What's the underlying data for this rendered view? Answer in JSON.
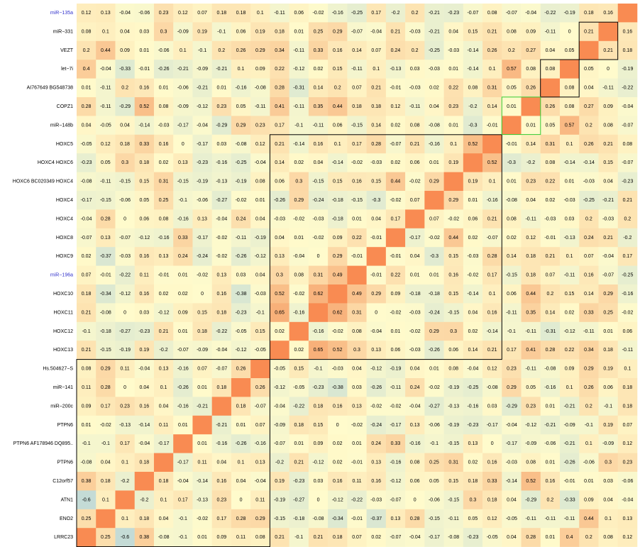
{
  "chart_data": {
    "type": "heatmap",
    "rows": [
      "miR−135a",
      "miR−331",
      "VEZT",
      "let−7i",
      "AI767649 BG548738",
      "COPZ1",
      "miR−148b",
      "HOXC5",
      "HOXC4 HOXC6",
      "HOXC6 BC020349 HOXC4",
      "HOXC4",
      "HOXC4",
      "HOXC8",
      "HOXC9",
      "miR−196a",
      "HOXC10",
      "HOXC11",
      "HOXC12",
      "HOXC13",
      "Hs.504627−S",
      "miR−141",
      "miR−200c",
      "PTPN6",
      "PTPN6 AF178946 DQ895..",
      "PTPN6",
      "C12orf57",
      "ATN1",
      "ENO2",
      "LRRC23"
    ],
    "row_label_colors": [
      "#3333cc",
      "#000000",
      "#000000",
      "#000000",
      "#000000",
      "#000000",
      "#000000",
      "#000000",
      "#000000",
      "#000000",
      "#000000",
      "#000000",
      "#000000",
      "#000000",
      "#3333cc",
      "#000000",
      "#000000",
      "#000000",
      "#000000",
      "#000000",
      "#000000",
      "#000000",
      "#000000",
      "#000000",
      "#000000",
      "#000000",
      "#000000",
      "#000000",
      "#000000"
    ],
    "zlim": [
      -1,
      1
    ],
    "colorscale": {
      "low": "#9cc6dc",
      "mid": "#fffbcc",
      "high": "#f4874c"
    },
    "diagonal_color": "#f98b52",
    "values": [
      [
        0.12,
        0.13,
        -0.04,
        -0.06,
        0.23,
        0.12,
        0.07,
        0.18,
        0.18,
        0.1,
        -0.11,
        0.06,
        -0.02,
        -0.16,
        -0.25,
        0.17,
        -0.2,
        0.2,
        -0.21,
        -0.23,
        -0.07,
        0.08,
        -0.07,
        -0.04,
        -0.22,
        -0.19,
        0.18,
        0.16,
        null
      ],
      [
        0.08,
        0.1,
        0.04,
        0.03,
        0.3,
        -0.09,
        0.19,
        -0.1,
        0.06,
        0.19,
        0.18,
        0.01,
        0.25,
        0.29,
        -0.07,
        -0.04,
        0.21,
        -0.03,
        -0.21,
        0.04,
        0.15,
        0.21,
        0.08,
        0.09,
        -0.11,
        0,
        0.21,
        null,
        0.16
      ],
      [
        0.2,
        0.44,
        0.09,
        0.01,
        -0.06,
        0.1,
        -0.1,
        0.2,
        0.26,
        0.29,
        0.34,
        -0.11,
        0.33,
        0.16,
        0.14,
        0.07,
        0.24,
        0.2,
        -0.25,
        -0.03,
        -0.14,
        0.26,
        0.2,
        0.27,
        0.04,
        0.05,
        null,
        0.21,
        0.18
      ],
      [
        0.4,
        -0.04,
        -0.33,
        -0.01,
        -0.26,
        -0.21,
        -0.09,
        -0.21,
        0.1,
        0.09,
        0.22,
        -0.12,
        0.02,
        0.15,
        -0.11,
        0.1,
        -0.13,
        0.03,
        -0.03,
        0.01,
        -0.14,
        0.1,
        0.57,
        0.08,
        0.08,
        null,
        0.05,
        0,
        -0.19
      ],
      [
        0.01,
        -0.11,
        0.2,
        0.16,
        0.01,
        -0.06,
        -0.21,
        0.01,
        -0.16,
        -0.08,
        0.28,
        -0.31,
        0.14,
        0.2,
        0.07,
        0.21,
        -0.01,
        -0.03,
        0.02,
        0.22,
        0.08,
        0.31,
        0.05,
        0.26,
        null,
        0.08,
        0.04,
        -0.11,
        -0.22
      ],
      [
        0.28,
        -0.11,
        -0.29,
        0.52,
        0.08,
        -0.09,
        -0.12,
        0.23,
        0.05,
        -0.11,
        0.41,
        -0.11,
        0.35,
        0.44,
        0.18,
        0.18,
        0.12,
        -0.11,
        0.04,
        0.23,
        -0.2,
        0.14,
        0.01,
        null,
        0.26,
        0.08,
        0.27,
        0.09,
        -0.04
      ],
      [
        0.04,
        -0.05,
        0.04,
        -0.14,
        -0.03,
        -0.17,
        -0.04,
        -0.29,
        0.29,
        0.23,
        0.17,
        -0.1,
        -0.11,
        0.06,
        -0.15,
        0.14,
        0.02,
        0.08,
        -0.08,
        0.01,
        -0.3,
        -0.01,
        null,
        0.01,
        0.05,
        0.57,
        0.2,
        0.08,
        -0.07
      ],
      [
        -0.05,
        0.12,
        0.18,
        0.33,
        0.16,
        0,
        -0.17,
        0.03,
        -0.08,
        0.12,
        0.21,
        -0.14,
        0.16,
        0.1,
        0.17,
        0.28,
        -0.07,
        0.21,
        -0.16,
        0.1,
        0.52,
        null,
        -0.01,
        0.14,
        0.31,
        0.1,
        0.26,
        0.21,
        0.08
      ],
      [
        -0.23,
        0.05,
        0.3,
        0.18,
        0.02,
        0.13,
        -0.23,
        -0.16,
        -0.25,
        -0.04,
        0.14,
        0.02,
        0.04,
        -0.14,
        -0.02,
        -0.03,
        0.02,
        0.06,
        0.01,
        0.19,
        null,
        0.52,
        -0.3,
        -0.2,
        0.08,
        -0.14,
        -0.14,
        0.15,
        -0.07
      ],
      [
        -0.08,
        -0.11,
        -0.15,
        0.15,
        0.31,
        -0.15,
        -0.19,
        -0.13,
        -0.19,
        0.08,
        0.06,
        0.3,
        -0.15,
        0.15,
        0.16,
        0.15,
        0.44,
        -0.02,
        0.29,
        null,
        0.19,
        0.1,
        0.01,
        0.23,
        0.22,
        0.01,
        -0.03,
        0.04,
        -0.23
      ],
      [
        -0.17,
        -0.15,
        -0.06,
        0.05,
        0.25,
        -0.1,
        -0.06,
        -0.27,
        -0.02,
        0.01,
        -0.26,
        0.29,
        -0.24,
        -0.18,
        -0.15,
        -0.3,
        -0.02,
        0.07,
        null,
        0.29,
        0.01,
        -0.16,
        -0.08,
        0.04,
        0.02,
        -0.03,
        -0.25,
        -0.21,
        0.21
      ],
      [
        -0.04,
        0.28,
        0,
        0.06,
        0.08,
        -0.16,
        0.13,
        -0.04,
        0.24,
        0.04,
        -0.03,
        -0.02,
        -0.03,
        -0.18,
        0.01,
        0.04,
        0.17,
        null,
        0.07,
        -0.02,
        0.06,
        0.21,
        0.08,
        -0.11,
        -0.03,
        0.03,
        0.2,
        -0.03,
        0.2
      ],
      [
        -0.07,
        0.13,
        -0.07,
        -0.12,
        -0.16,
        0.33,
        -0.17,
        -0.02,
        -0.11,
        -0.19,
        0.04,
        0.01,
        -0.02,
        0.09,
        0.22,
        -0.01,
        null,
        -0.17,
        -0.02,
        0.44,
        0.02,
        -0.07,
        0.02,
        0.12,
        -0.01,
        -0.13,
        0.24,
        0.21,
        -0.2
      ],
      [
        0.02,
        -0.37,
        -0.03,
        0.16,
        0.13,
        0.24,
        -0.24,
        -0.02,
        -0.26,
        -0.12,
        0.13,
        -0.04,
        0,
        0.29,
        -0.01,
        null,
        -0.01,
        0.04,
        -0.3,
        0.15,
        -0.03,
        0.28,
        0.14,
        0.18,
        0.21,
        0.1,
        0.07,
        -0.04,
        0.17
      ],
      [
        0.07,
        -0.01,
        -0.22,
        0.11,
        -0.01,
        0.01,
        -0.02,
        0.13,
        0.03,
        0.04,
        0.3,
        0.08,
        0.31,
        0.49,
        null,
        -0.01,
        0.22,
        0.01,
        0.01,
        0.16,
        -0.02,
        0.17,
        -0.15,
        0.18,
        0.07,
        -0.11,
        0.16,
        -0.07,
        -0.25
      ],
      [
        0.18,
        -0.34,
        -0.12,
        0.16,
        0.02,
        0.02,
        0,
        0.16,
        -0.38,
        -0.03,
        0.52,
        -0.02,
        0.62,
        null,
        0.49,
        0.29,
        0.09,
        -0.18,
        -0.18,
        0.15,
        -0.14,
        0.1,
        0.06,
        0.44,
        0.2,
        0.15,
        0.14,
        0.29,
        -0.16
      ],
      [
        0.21,
        -0.08,
        0,
        0.03,
        -0.12,
        0.09,
        0.15,
        0.18,
        -0.23,
        -0.1,
        0.65,
        -0.16,
        null,
        0.62,
        0.31,
        0,
        -0.02,
        -0.03,
        -0.24,
        -0.15,
        0.04,
        0.16,
        -0.11,
        0.35,
        0.14,
        0.02,
        0.33,
        0.25,
        -0.02
      ],
      [
        -0.1,
        -0.18,
        -0.27,
        -0.23,
        0.21,
        0.01,
        0.18,
        -0.22,
        -0.05,
        0.15,
        0.02,
        null,
        -0.16,
        -0.02,
        0.08,
        -0.04,
        0.01,
        -0.02,
        0.29,
        0.3,
        0.02,
        -0.14,
        -0.1,
        -0.11,
        -0.31,
        -0.12,
        -0.11,
        0.01,
        0.06
      ],
      [
        0.21,
        -0.15,
        -0.19,
        0.19,
        -0.2,
        -0.07,
        -0.09,
        -0.04,
        -0.12,
        -0.05,
        null,
        0.02,
        0.65,
        0.52,
        0.3,
        0.13,
        0.06,
        -0.03,
        -0.26,
        0.06,
        0.14,
        0.21,
        0.17,
        0.41,
        0.28,
        0.22,
        0.34,
        0.18,
        -0.11
      ],
      [
        0.08,
        0.29,
        0.11,
        -0.04,
        0.13,
        -0.16,
        0.07,
        -0.07,
        0.26,
        null,
        -0.05,
        0.15,
        -0.1,
        -0.03,
        0.04,
        -0.12,
        -0.19,
        0.04,
        0.01,
        0.08,
        -0.04,
        0.12,
        0.23,
        -0.11,
        -0.08,
        0.09,
        0.29,
        0.19,
        0.1
      ],
      [
        0.11,
        0.28,
        0,
        0.04,
        0.1,
        -0.26,
        0.01,
        0.18,
        null,
        0.26,
        -0.12,
        -0.05,
        -0.23,
        -0.38,
        0.03,
        -0.26,
        -0.11,
        0.24,
        -0.02,
        -0.19,
        -0.25,
        -0.08,
        0.29,
        0.05,
        -0.16,
        0.1,
        0.26,
        0.06,
        0.18
      ],
      [
        0.09,
        0.17,
        0.23,
        0.16,
        0.04,
        -0.16,
        -0.21,
        null,
        0.18,
        -0.07,
        -0.04,
        -0.22,
        0.18,
        0.16,
        0.13,
        -0.02,
        -0.02,
        -0.04,
        -0.27,
        -0.13,
        -0.16,
        0.03,
        -0.29,
        0.23,
        0.01,
        -0.21,
        0.2,
        -0.1,
        0.18
      ],
      [
        0.01,
        -0.02,
        -0.13,
        -0.14,
        0.11,
        0.01,
        null,
        -0.21,
        0.01,
        0.07,
        -0.09,
        0.18,
        0.15,
        0,
        -0.02,
        -0.24,
        -0.17,
        0.13,
        -0.06,
        -0.19,
        -0.23,
        -0.17,
        -0.04,
        -0.12,
        -0.21,
        -0.09,
        -0.1,
        0.19,
        0.07
      ],
      [
        -0.1,
        -0.1,
        0.17,
        -0.04,
        -0.17,
        null,
        0.01,
        -0.16,
        -0.26,
        -0.16,
        -0.07,
        0.01,
        0.09,
        0.02,
        0.01,
        0.24,
        0.33,
        -0.16,
        -0.1,
        -0.15,
        0.13,
        0,
        -0.17,
        -0.09,
        -0.06,
        -0.21,
        0.1,
        -0.09,
        0.12
      ],
      [
        -0.08,
        0.04,
        0.1,
        0.18,
        null,
        -0.17,
        0.11,
        0.04,
        0.1,
        0.13,
        -0.2,
        0.21,
        -0.12,
        0.02,
        -0.01,
        0.13,
        -0.16,
        0.08,
        0.25,
        0.31,
        0.02,
        0.16,
        -0.03,
        0.08,
        0.01,
        -0.26,
        -0.06,
        0.3,
        0.23
      ],
      [
        0.38,
        0.18,
        -0.2,
        null,
        0.18,
        -0.04,
        -0.14,
        0.16,
        0.04,
        -0.04,
        0.19,
        -0.23,
        0.03,
        0.16,
        0.11,
        0.16,
        -0.12,
        0.06,
        0.05,
        0.15,
        0.18,
        0.33,
        -0.14,
        0.52,
        0.16,
        -0.01,
        0.01,
        0.03,
        -0.06
      ],
      [
        -0.6,
        0.1,
        null,
        -0.2,
        0.1,
        0.17,
        -0.13,
        0.23,
        0,
        0.11,
        -0.19,
        -0.27,
        0,
        -0.12,
        -0.22,
        -0.03,
        -0.07,
        0,
        -0.06,
        -0.15,
        0.3,
        0.18,
        0.04,
        -0.29,
        0.2,
        -0.33,
        0.09,
        0.04,
        -0.04
      ],
      [
        0.25,
        null,
        0.1,
        0.18,
        0.04,
        -0.1,
        -0.02,
        0.17,
        0.28,
        0.29,
        -0.15,
        -0.18,
        -0.08,
        -0.34,
        -0.01,
        -0.37,
        0.13,
        0.28,
        -0.15,
        -0.11,
        0.05,
        0.12,
        -0.05,
        -0.11,
        -0.11,
        -0.11,
        0.44,
        0.1,
        0.13
      ],
      [
        null,
        0.25,
        -0.6,
        0.38,
        -0.08,
        -0.1,
        0.01,
        0.09,
        0.11,
        0.08,
        0.21,
        -0.1,
        0.21,
        0.18,
        0.07,
        0.02,
        -0.07,
        -0.04,
        -0.17,
        -0.08,
        -0.23,
        -0.05,
        0.04,
        0.28,
        0.01,
        0.4,
        0.2,
        0.08,
        0.12
      ]
    ]
  }
}
